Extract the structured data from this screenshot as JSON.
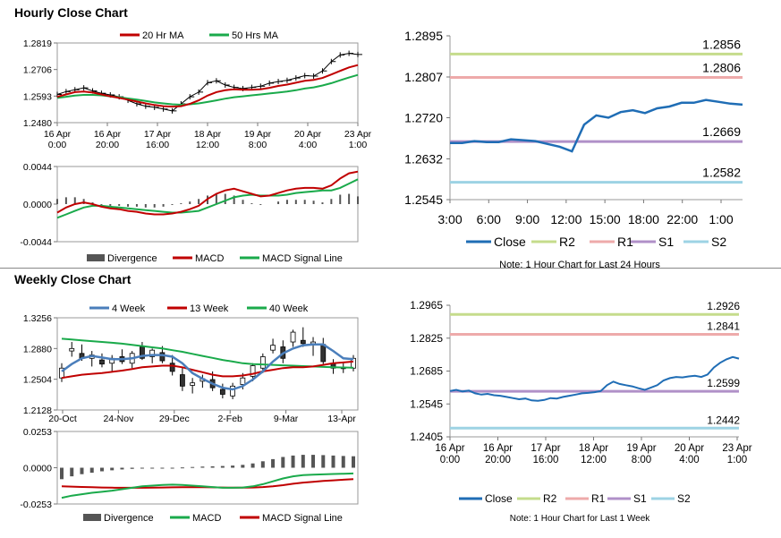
{
  "sections": {
    "hourly_title": "Hourly Close Chart",
    "weekly_title": "Weekly Close Chart"
  },
  "colors": {
    "ma_short": "#c00000",
    "ma_long": "#1aaa4b",
    "close": "#1f6db5",
    "r2": "#c5dc8c",
    "r1": "#eeaaaa",
    "s1": "#b090c8",
    "s2": "#9dd3e4",
    "divergence": "#555555",
    "candle_up": "#ffffff",
    "candle_down": "#333333",
    "week4": "#4a7ebb"
  },
  "chart_data": [
    {
      "id": "hourly_price",
      "type": "line",
      "legend": [
        "20 Hr MA",
        "50 Hrs MA"
      ],
      "y_ticks": [
        "1.2819",
        "1.2706",
        "1.2593",
        "1.2480"
      ],
      "ylim": [
        1.248,
        1.2819
      ],
      "x_ticks": [
        [
          "16 Apr",
          "0:00"
        ],
        [
          "16 Apr",
          "20:00"
        ],
        [
          "17 Apr",
          "16:00"
        ],
        [
          "18 Apr",
          "12:00"
        ],
        [
          "19 Apr",
          "8:00"
        ],
        [
          "20 Apr",
          "4:00"
        ],
        [
          "23 Apr",
          "1:00"
        ]
      ],
      "series": [
        {
          "name": "Close",
          "values": [
            1.26,
            1.2612,
            1.262,
            1.2628,
            1.2615,
            1.2605,
            1.2598,
            1.259,
            1.2575,
            1.256,
            1.255,
            1.2545,
            1.2538,
            1.253,
            1.256,
            1.259,
            1.261,
            1.265,
            1.2658,
            1.264,
            1.263,
            1.2625,
            1.263,
            1.2635,
            1.2648,
            1.2655,
            1.266,
            1.267,
            1.268,
            1.2678,
            1.27,
            1.274,
            1.2768,
            1.2775,
            1.277
          ]
        },
        {
          "name": "20 Hr MA",
          "values": [
            1.259,
            1.26,
            1.261,
            1.2612,
            1.2608,
            1.26,
            1.2592,
            1.2585,
            1.2578,
            1.257,
            1.2562,
            1.2555,
            1.255,
            1.2548,
            1.255,
            1.256,
            1.2575,
            1.2595,
            1.261,
            1.2618,
            1.2622,
            1.262,
            1.262,
            1.2622,
            1.2628,
            1.2636,
            1.2642,
            1.265,
            1.2658,
            1.2662,
            1.267,
            1.2685,
            1.27,
            1.2715,
            1.2725
          ]
        },
        {
          "name": "50 Hrs MA",
          "values": [
            1.2585,
            1.259,
            1.2595,
            1.2598,
            1.2598,
            1.2596,
            1.2592,
            1.2588,
            1.2583,
            1.2578,
            1.2572,
            1.2566,
            1.2562,
            1.2558,
            1.2556,
            1.2558,
            1.2562,
            1.2568,
            1.2575,
            1.2582,
            1.2588,
            1.2592,
            1.2596,
            1.26,
            1.2604,
            1.2608,
            1.2612,
            1.2618,
            1.2625,
            1.263,
            1.2638,
            1.2648,
            1.266,
            1.2672,
            1.2683
          ]
        }
      ]
    },
    {
      "id": "hourly_macd",
      "type": "line",
      "legend": [
        "Divergence",
        "MACD",
        "MACD Signal Line"
      ],
      "y_ticks": [
        "0.0044",
        "0.0000",
        "-0.0044"
      ],
      "ylim": [
        -0.0044,
        0.0044
      ],
      "series": [
        {
          "name": "MACD",
          "values": [
            -0.001,
            -0.0004,
            0.0,
            0.0002,
            0.0,
            -0.0003,
            -0.0005,
            -0.0006,
            -0.0008,
            -0.0009,
            -0.0011,
            -0.0012,
            -0.0012,
            -0.0011,
            -0.0009,
            -0.0006,
            -0.0002,
            0.0006,
            0.0012,
            0.0016,
            0.0018,
            0.0015,
            0.0012,
            0.0009,
            0.001,
            0.0013,
            0.0016,
            0.0018,
            0.0019,
            0.0019,
            0.0018,
            0.0022,
            0.003,
            0.0036,
            0.0038
          ]
        },
        {
          "name": "MACD Signal Line",
          "values": [
            -0.0016,
            -0.0012,
            -0.0008,
            -0.0004,
            -0.0002,
            -0.0002,
            -0.0003,
            -0.0004,
            -0.0005,
            -0.0006,
            -0.0007,
            -0.0008,
            -0.0009,
            -0.001,
            -0.001,
            -0.0009,
            -0.0008,
            -0.0004,
            0.0,
            0.0004,
            0.0008,
            0.001,
            0.0011,
            0.001,
            0.001,
            0.001,
            0.0011,
            0.0013,
            0.0014,
            0.0015,
            0.0016,
            0.0016,
            0.0019,
            0.0024,
            0.0029
          ]
        }
      ]
    },
    {
      "id": "hourly_levels",
      "type": "line",
      "legend": [
        "Close",
        "R2",
        "R1",
        "S1",
        "S2"
      ],
      "note": "Note: 1 Hour Chart for Last 24 Hours",
      "y_ticks": [
        "1.2895",
        "1.2807",
        "1.2720",
        "1.2632",
        "1.2545"
      ],
      "ylim": [
        1.2545,
        1.2895
      ],
      "x_ticks": [
        "3:00",
        "6:00",
        "9:00",
        "12:00",
        "15:00",
        "18:00",
        "22:00",
        "1:00"
      ],
      "levels": [
        {
          "name": "R2",
          "value": 1.2856,
          "label": "1.2856"
        },
        {
          "name": "R1",
          "value": 1.2806,
          "label": "1.2806"
        },
        {
          "name": "S1",
          "value": 1.2669,
          "label": "1.2669"
        },
        {
          "name": "S2",
          "value": 1.2582,
          "label": "1.2582"
        }
      ],
      "series": [
        {
          "name": "Close",
          "values": [
            1.2666,
            1.2666,
            1.267,
            1.2668,
            1.2668,
            1.2674,
            1.2672,
            1.267,
            1.2664,
            1.2658,
            1.2648,
            1.2705,
            1.2725,
            1.272,
            1.2732,
            1.2736,
            1.273,
            1.274,
            1.2744,
            1.2752,
            1.2752,
            1.2758,
            1.2754,
            1.275,
            1.2748
          ]
        }
      ]
    },
    {
      "id": "weekly_price",
      "type": "line",
      "legend": [
        "4 Week",
        "13 Week",
        "40 Week"
      ],
      "y_ticks": [
        "1.3256",
        "1.2880",
        "1.2504",
        "1.2128"
      ],
      "ylim": [
        1.2128,
        1.3256
      ],
      "x_ticks": [
        "20-Oct",
        "24-Nov",
        "29-Dec",
        "2-Feb",
        "9-Mar",
        "13-Apr"
      ],
      "candles": [
        {
          "o": 1.252,
          "h": 1.27,
          "l": 1.247,
          "c": 1.264
        },
        {
          "o": 1.285,
          "h": 1.296,
          "l": 1.278,
          "c": 1.288
        },
        {
          "o": 1.282,
          "h": 1.293,
          "l": 1.273,
          "c": 1.276
        },
        {
          "o": 1.276,
          "h": 1.285,
          "l": 1.266,
          "c": 1.28
        },
        {
          "o": 1.274,
          "h": 1.282,
          "l": 1.265,
          "c": 1.269
        },
        {
          "o": 1.27,
          "h": 1.28,
          "l": 1.26,
          "c": 1.276
        },
        {
          "o": 1.278,
          "h": 1.287,
          "l": 1.269,
          "c": 1.272
        },
        {
          "o": 1.27,
          "h": 1.285,
          "l": 1.264,
          "c": 1.282
        },
        {
          "o": 1.29,
          "h": 1.296,
          "l": 1.274,
          "c": 1.276
        },
        {
          "o": 1.278,
          "h": 1.288,
          "l": 1.27,
          "c": 1.286
        },
        {
          "o": 1.283,
          "h": 1.291,
          "l": 1.27,
          "c": 1.273
        },
        {
          "o": 1.27,
          "h": 1.28,
          "l": 1.255,
          "c": 1.26
        },
        {
          "o": 1.256,
          "h": 1.265,
          "l": 1.236,
          "c": 1.242
        },
        {
          "o": 1.243,
          "h": 1.252,
          "l": 1.233,
          "c": 1.246
        },
        {
          "o": 1.248,
          "h": 1.256,
          "l": 1.24,
          "c": 1.251
        },
        {
          "o": 1.25,
          "h": 1.26,
          "l": 1.236,
          "c": 1.24
        },
        {
          "o": 1.238,
          "h": 1.245,
          "l": 1.227,
          "c": 1.232
        },
        {
          "o": 1.23,
          "h": 1.246,
          "l": 1.226,
          "c": 1.242
        },
        {
          "o": 1.244,
          "h": 1.258,
          "l": 1.238,
          "c": 1.252
        },
        {
          "o": 1.254,
          "h": 1.27,
          "l": 1.248,
          "c": 1.267
        },
        {
          "o": 1.264,
          "h": 1.282,
          "l": 1.258,
          "c": 1.278
        },
        {
          "o": 1.286,
          "h": 1.3,
          "l": 1.282,
          "c": 1.292
        },
        {
          "o": 1.29,
          "h": 1.298,
          "l": 1.27,
          "c": 1.276
        },
        {
          "o": 1.296,
          "h": 1.311,
          "l": 1.29,
          "c": 1.308
        },
        {
          "o": 1.298,
          "h": 1.314,
          "l": 1.29,
          "c": 1.294
        },
        {
          "o": 1.294,
          "h": 1.302,
          "l": 1.279,
          "c": 1.296
        },
        {
          "o": 1.293,
          "h": 1.301,
          "l": 1.269,
          "c": 1.272
        },
        {
          "o": 1.27,
          "h": 1.275,
          "l": 1.257,
          "c": 1.264
        },
        {
          "o": 1.264,
          "h": 1.27,
          "l": 1.258,
          "c": 1.265
        },
        {
          "o": 1.264,
          "h": 1.28,
          "l": 1.26,
          "c": 1.276
        }
      ],
      "series": [
        {
          "name": "4 Week",
          "values": [
            1.26,
            1.269,
            1.276,
            1.279,
            1.277,
            1.275,
            1.275,
            1.276,
            1.279,
            1.28,
            1.28,
            1.278,
            1.27,
            1.258,
            1.251,
            1.245,
            1.24,
            1.238,
            1.242,
            1.25,
            1.26,
            1.272,
            1.282,
            1.288,
            1.292,
            1.293,
            1.293,
            1.285,
            1.276,
            1.275
          ]
        },
        {
          "name": "13 Week",
          "values": [
            1.252,
            1.254,
            1.256,
            1.257,
            1.258,
            1.2595,
            1.261,
            1.263,
            1.265,
            1.266,
            1.267,
            1.267,
            1.265,
            1.262,
            1.259,
            1.256,
            1.254,
            1.254,
            1.255,
            1.257,
            1.26,
            1.262,
            1.264,
            1.265,
            1.265,
            1.266,
            1.268,
            1.27,
            1.271,
            1.272
          ]
        },
        {
          "name": "40 Week",
          "values": [
            1.3,
            1.299,
            1.298,
            1.297,
            1.296,
            1.295,
            1.294,
            1.2925,
            1.291,
            1.2895,
            1.288,
            1.286,
            1.284,
            1.2815,
            1.279,
            1.2765,
            1.274,
            1.272,
            1.27,
            1.269,
            1.2685,
            1.268,
            1.2675,
            1.267,
            1.2665,
            1.266,
            1.2655,
            1.265,
            1.2648,
            1.2645
          ]
        }
      ]
    },
    {
      "id": "weekly_macd",
      "type": "line",
      "legend": [
        "Divergence",
        "MACD",
        "MACD Signal Line"
      ],
      "y_ticks": [
        "0.0253",
        "0.0000",
        "-0.0253"
      ],
      "ylim": [
        -0.0253,
        0.0253
      ],
      "divergence": [
        -0.008,
        -0.006,
        -0.0045,
        -0.0035,
        -0.0025,
        -0.0018,
        -0.0012,
        -0.0008,
        -0.0005,
        -0.0002,
        0.0,
        0.0,
        0.0002,
        0.0005,
        0.0008,
        0.001,
        0.0012,
        0.0015,
        0.002,
        0.003,
        0.0045,
        0.006,
        0.0075,
        0.0085,
        0.009,
        0.009,
        0.0088,
        0.0085,
        0.0082,
        0.008
      ],
      "series": [
        {
          "name": "MACD",
          "values": [
            -0.021,
            -0.0195,
            -0.0185,
            -0.0175,
            -0.0168,
            -0.016,
            -0.015,
            -0.014,
            -0.013,
            -0.0125,
            -0.012,
            -0.0118,
            -0.012,
            -0.0125,
            -0.013,
            -0.0135,
            -0.014,
            -0.014,
            -0.0138,
            -0.013,
            -0.0115,
            -0.0095,
            -0.0075,
            -0.006,
            -0.0052,
            -0.0048,
            -0.0046,
            -0.0044,
            -0.0042,
            -0.004
          ]
        },
        {
          "name": "MACD Signal Line",
          "values": [
            -0.013,
            -0.0132,
            -0.0134,
            -0.0136,
            -0.0138,
            -0.0139,
            -0.014,
            -0.014,
            -0.014,
            -0.0139,
            -0.0138,
            -0.0137,
            -0.0136,
            -0.0136,
            -0.0136,
            -0.0137,
            -0.0138,
            -0.0139,
            -0.0139,
            -0.0138,
            -0.0135,
            -0.013,
            -0.0122,
            -0.0112,
            -0.0104,
            -0.0098,
            -0.0092,
            -0.0088,
            -0.0084,
            -0.008
          ]
        }
      ]
    },
    {
      "id": "weekly_levels",
      "type": "line",
      "legend": [
        "Close",
        "R2",
        "R1",
        "S1",
        "S2"
      ],
      "note": "Note: 1 Hour Chart for Last 1 Week",
      "y_ticks": [
        "1.2965",
        "1.2825",
        "1.2685",
        "1.2545",
        "1.2405"
      ],
      "ylim": [
        1.2405,
        1.2965
      ],
      "x_ticks": [
        [
          "16 Apr",
          "0:00"
        ],
        [
          "16 Apr",
          "20:00"
        ],
        [
          "17 Apr",
          "16:00"
        ],
        [
          "18 Apr",
          "12:00"
        ],
        [
          "19 Apr",
          "8:00"
        ],
        [
          "20 Apr",
          "4:00"
        ],
        [
          "23 Apr",
          "1:00"
        ]
      ],
      "levels": [
        {
          "name": "R2",
          "value": 1.2926,
          "label": "1.2926"
        },
        {
          "name": "R1",
          "value": 1.2841,
          "label": "1.2841"
        },
        {
          "name": "S1",
          "value": 1.2599,
          "label": "1.2599"
        },
        {
          "name": "S2",
          "value": 1.2442,
          "label": "1.2442"
        }
      ],
      "series": [
        {
          "name": "Close",
          "values": [
            1.26,
            1.2605,
            1.2598,
            1.2602,
            1.259,
            1.2585,
            1.2588,
            1.2582,
            1.258,
            1.2575,
            1.257,
            1.2565,
            1.2568,
            1.256,
            1.2558,
            1.2562,
            1.257,
            1.2568,
            1.2575,
            1.258,
            1.2585,
            1.259,
            1.2592,
            1.2595,
            1.26,
            1.2625,
            1.264,
            1.263,
            1.2625,
            1.262,
            1.2612,
            1.2605,
            1.2615,
            1.2625,
            1.2645,
            1.2655,
            1.266,
            1.2658,
            1.2662,
            1.2665,
            1.266,
            1.267,
            1.27,
            1.272,
            1.2735,
            1.2745,
            1.2738
          ]
        }
      ]
    }
  ]
}
